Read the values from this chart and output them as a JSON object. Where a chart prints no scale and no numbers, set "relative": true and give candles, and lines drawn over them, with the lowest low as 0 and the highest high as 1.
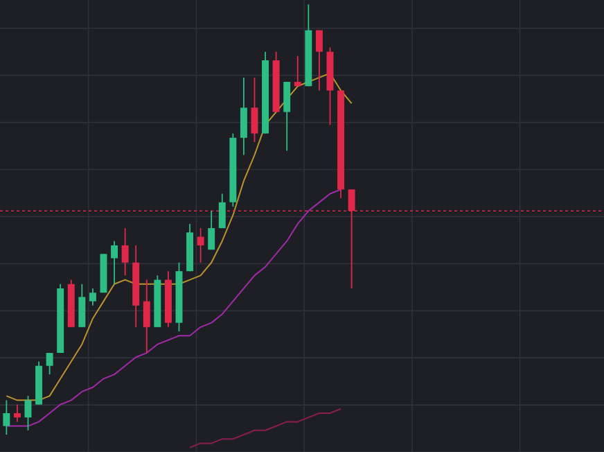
{
  "chart_data": {
    "type": "candlestick",
    "relative": true,
    "grid": true,
    "categories": [
      null,
      null,
      null,
      null,
      null,
      null,
      null,
      null,
      null,
      null,
      null,
      null,
      null,
      null,
      null,
      null,
      null,
      null,
      null,
      null,
      null,
      null,
      null,
      null,
      null,
      null,
      null,
      null,
      null,
      null,
      null,
      null,
      null,
      null,
      null,
      null,
      null,
      null,
      null,
      null,
      null,
      null,
      null,
      null,
      null,
      null,
      null,
      null,
      null,
      null,
      null,
      null,
      null,
      null,
      null,
      null
    ],
    "ohlc": [
      [
        0.02,
        0.08,
        0,
        0.05
      ],
      [
        0.05,
        0.07,
        0.03,
        0.04
      ],
      [
        0.04,
        0.09,
        0.01,
        0.08
      ],
      [
        0.07,
        0.17,
        0.07,
        0.16
      ],
      [
        0.16,
        0.19,
        0.14,
        0.19
      ],
      [
        0.19,
        0.35,
        0.19,
        0.34
      ],
      [
        0.35,
        0.36,
        0.25,
        0.25
      ],
      [
        0.25,
        0.35,
        0.25,
        0.32
      ],
      [
        0.31,
        0.34,
        0.3,
        0.33
      ],
      [
        0.33,
        0.42,
        0.33,
        0.42
      ],
      [
        0.41,
        0.45,
        0.35,
        0.44
      ],
      [
        0.44,
        0.48,
        0.37,
        0.4
      ],
      [
        0.4,
        0.44,
        0.25,
        0.3
      ],
      [
        0.31,
        0.36,
        0.19,
        0.25
      ],
      [
        0.25,
        0.37,
        0.25,
        0.36
      ],
      [
        0.36,
        0.38,
        0.25,
        0.26
      ],
      [
        0.26,
        0.4,
        0.24,
        0.38
      ],
      [
        0.38,
        0.49,
        0.38,
        0.47
      ],
      [
        0.46,
        0.48,
        0.4,
        0.44
      ],
      [
        0.43,
        0.52,
        0.43,
        0.48
      ],
      [
        0.48,
        0.56,
        0.48,
        0.54
      ],
      [
        0.54,
        0.7,
        0.53,
        0.69
      ],
      [
        0.69,
        0.83,
        0.65,
        0.76
      ],
      [
        0.76,
        0.83,
        0.68,
        0.7
      ],
      [
        0.7,
        0.89,
        0.7,
        0.87
      ],
      [
        0.87,
        0.89,
        0.75,
        0.75
      ],
      [
        0.75,
        0.82,
        0.66,
        0.82
      ],
      [
        0.82,
        0.88,
        0.81,
        0.81
      ],
      [
        0.81,
        1,
        0.81,
        0.94
      ],
      [
        0.94,
        0.94,
        0.8,
        0.89
      ],
      [
        0.89,
        0.9,
        0.72,
        0.8
      ],
      [
        0.8,
        0.8,
        0.55,
        0.57
      ],
      [
        0.57,
        0.57,
        0.34,
        0.52
      ],
      null,
      null,
      null,
      null,
      null,
      null,
      null,
      null,
      null,
      null,
      null,
      null,
      null,
      null,
      null,
      null,
      null,
      null,
      null,
      null,
      null,
      null,
      null
    ],
    "colors": [
      "#2ebd85",
      "#e0294a",
      "#2ebd85",
      "#2ebd85",
      "#2ebd85",
      "#2ebd85",
      "#e0294a",
      "#2ebd85",
      "#2ebd85",
      "#2ebd85",
      "#2ebd85",
      "#e0294a",
      "#e0294a",
      "#e0294a",
      "#2ebd85",
      "#e0294a",
      "#2ebd85",
      "#2ebd85",
      "#e0294a",
      "#2ebd85",
      "#2ebd85",
      "#2ebd85",
      "#2ebd85",
      "#e0294a",
      "#2ebd85",
      "#e0294a",
      "#2ebd85",
      "#e0294a",
      "#2ebd85",
      "#e0294a",
      "#e0294a",
      "#e0294a",
      "#e0294a",
      null,
      null,
      null,
      null,
      null,
      null,
      null,
      null,
      null,
      null,
      null,
      null,
      null,
      null,
      null,
      null,
      null,
      null,
      null,
      null,
      null,
      null,
      null
    ],
    "series": [
      {
        "type": "line",
        "color": "#b8932e",
        "values": [
          0.09,
          0.08,
          0.08,
          0.08,
          0.09,
          0.13,
          0.17,
          0.21,
          0.27,
          0.31,
          0.35,
          0.36,
          0.35,
          0.35,
          0.35,
          0.35,
          0.35,
          0.36,
          0.37,
          0.4,
          0.45,
          0.51,
          0.59,
          0.65,
          0.72,
          0.75,
          0.78,
          0.81,
          0.82,
          0.83,
          0.84,
          0.8,
          0.77,
          null,
          null,
          null,
          null,
          null,
          null,
          null,
          null,
          null,
          null,
          null,
          null,
          null,
          null,
          null,
          null,
          null,
          null,
          null,
          null,
          null,
          null,
          null
        ]
      },
      {
        "type": "line",
        "color": "#a02aa8",
        "values": [
          0.02,
          0.02,
          0.02,
          0.03,
          0.05,
          0.07,
          0.08,
          0.1,
          0.11,
          0.13,
          0.14,
          0.16,
          0.18,
          0.19,
          0.21,
          0.22,
          0.23,
          0.23,
          0.25,
          0.26,
          0.28,
          0.31,
          0.34,
          0.37,
          0.39,
          0.42,
          0.45,
          0.49,
          0.52,
          0.54,
          0.56,
          0.57,
          null,
          null,
          null,
          null,
          null,
          null,
          null,
          null,
          null,
          null,
          null,
          null,
          null,
          null,
          null,
          null,
          null,
          null,
          null,
          null,
          null,
          null,
          null,
          null
        ]
      },
      {
        "type": "line",
        "color": "#8b1d4f",
        "values": [
          null,
          null,
          null,
          null,
          null,
          null,
          null,
          null,
          null,
          null,
          null,
          null,
          null,
          null,
          null,
          null,
          null,
          -0.03,
          -0.02,
          -0.02,
          -0.01,
          -0.01,
          0,
          0.01,
          0.01,
          0.02,
          0.03,
          0.03,
          0.04,
          0.05,
          0.05,
          0.06,
          null,
          null,
          null,
          null,
          null,
          null,
          null,
          null,
          null,
          null,
          null,
          null,
          null,
          null,
          null,
          null,
          null,
          null,
          null,
          null,
          null,
          null,
          null,
          null
        ]
      }
    ],
    "ref_lines": [
      {
        "axis": "y",
        "value": 0.52,
        "color": "#e0294a",
        "line_style": "dashed"
      }
    ]
  }
}
